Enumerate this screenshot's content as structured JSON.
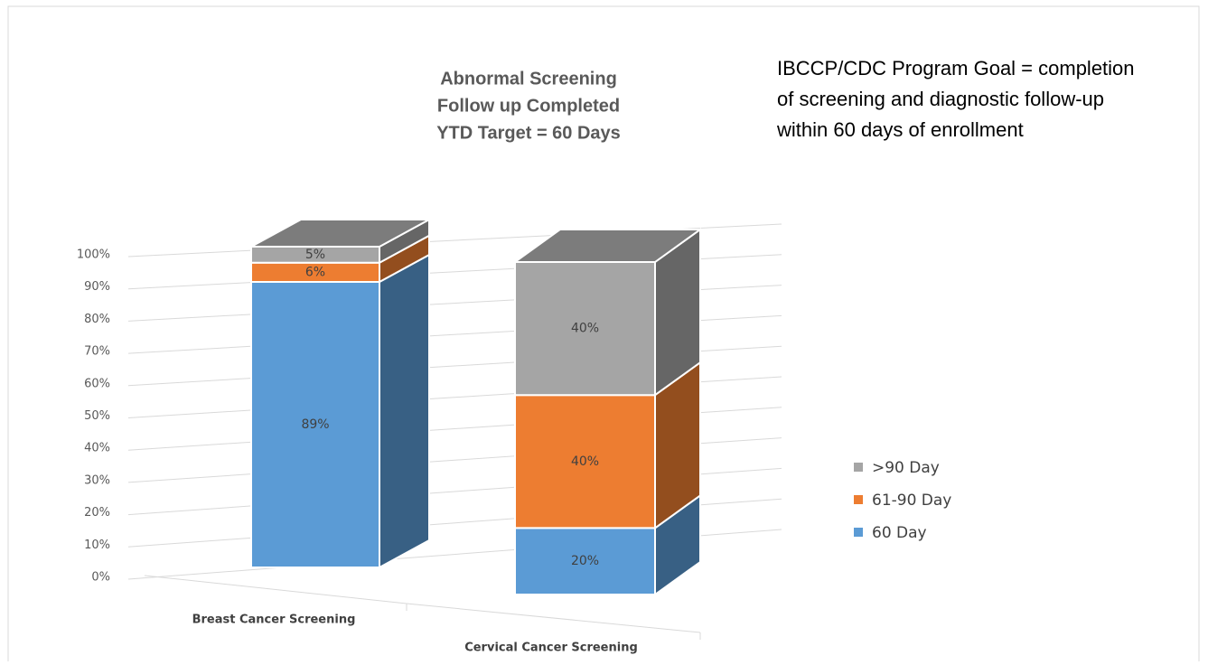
{
  "chart_data": {
    "type": "bar3d_stacked",
    "title": [
      "Abnormal Screening",
      "Follow up Completed",
      "YTD Target = 60 Days"
    ],
    "annotation": [
      "IBCCP/CDC Program Goal = completion",
      "of screening and diagnostic follow-up",
      "within 60 days of enrollment"
    ],
    "categories": [
      "Breast Cancer Screening",
      "Cervical Cancer Screening"
    ],
    "series": [
      {
        "name": "60 Day",
        "color": "#5b9bd5",
        "values": [
          89,
          20
        ],
        "value_labels": [
          "89%",
          "20%"
        ]
      },
      {
        "name": "61-90 Day",
        "color": "#ed7d31",
        "values": [
          6,
          40
        ],
        "value_labels": [
          "6%",
          "40%"
        ]
      },
      {
        "name": ">90 Day",
        "color": "#a5a5a5",
        "values": [
          5,
          40
        ],
        "value_labels": [
          "5%",
          "40%"
        ]
      }
    ],
    "ylim": [
      0,
      100
    ],
    "yticks": [
      {
        "value": 0,
        "label": "0%"
      },
      {
        "value": 10,
        "label": "10%"
      },
      {
        "value": 20,
        "label": "20%"
      },
      {
        "value": 30,
        "label": "30%"
      },
      {
        "value": 40,
        "label": "40%"
      },
      {
        "value": 50,
        "label": "50%"
      },
      {
        "value": 60,
        "label": "60%"
      },
      {
        "value": 70,
        "label": "70%"
      },
      {
        "value": 80,
        "label": "80%"
      },
      {
        "value": 90,
        "label": "90%"
      },
      {
        "value": 100,
        "label": "100%"
      }
    ],
    "grid": true,
    "legend": "right"
  }
}
